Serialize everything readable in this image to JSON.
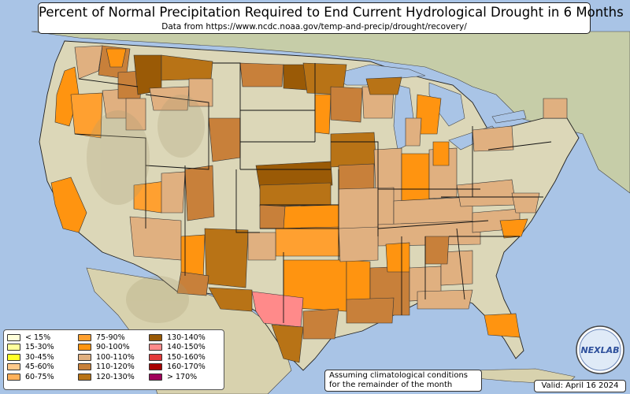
{
  "title": "Percent of Normal Precipitation Required to End Current Hydrological Drought in 6 Months",
  "subtitle": "Data from https://www.ncdc.noaa.gov/temp-and-precip/drought/recovery/",
  "legend": [
    {
      "label": "< 15%",
      "color": "#ffffd9"
    },
    {
      "label": "15-30%",
      "color": "#ffff9c"
    },
    {
      "label": "30-45%",
      "color": "#ffff2a"
    },
    {
      "label": "45-60%",
      "color": "#ffc98a"
    },
    {
      "label": "60-75%",
      "color": "#ffb15a"
    },
    {
      "label": "75-90%",
      "color": "#ffa030"
    },
    {
      "label": "90-100%",
      "color": "#ff9410"
    },
    {
      "label": "100-110%",
      "color": "#e0b080"
    },
    {
      "label": "110-120%",
      "color": "#c8803a"
    },
    {
      "label": "120-130%",
      "color": "#b87316"
    },
    {
      "label": "130-140%",
      "color": "#9a5a06"
    },
    {
      "label": "140-150%",
      "color": "#ff8a8a"
    },
    {
      "label": "150-160%",
      "color": "#e23a3a"
    },
    {
      "label": "160-170%",
      "color": "#a80000"
    },
    {
      "label": "> 170%",
      "color": "#a0005a"
    }
  ],
  "note_line1": "Assuming climatological conditions",
  "note_line2": "for the remainder of the month",
  "valid_date": "Valid: April 16 2024",
  "logo_text": "NEXLAB",
  "colors": {
    "ocean": "#a9c4e6",
    "land_foreign": "#c9cfae",
    "land_us": "#dcd7b8",
    "borders": "#000000"
  }
}
